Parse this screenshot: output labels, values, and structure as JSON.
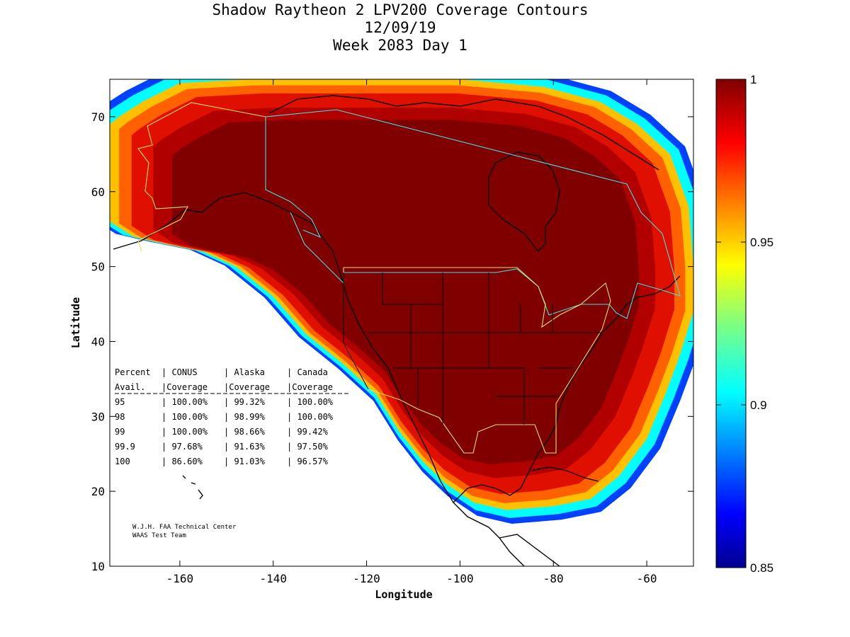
{
  "title": {
    "line1": "Shadow Raytheon 2 LPV200 Coverage Contours",
    "line2": "12/09/19",
    "line3": "Week 2083 Day 1"
  },
  "chart_data": {
    "type": "heatmap",
    "title": "Shadow Raytheon 2 LPV200 Coverage Contours",
    "xlabel": "Longitude",
    "ylabel": "Latitude",
    "xlim": [
      -175,
      -50
    ],
    "ylim": [
      10,
      75
    ],
    "x_ticks": [
      -160,
      -140,
      -120,
      -100,
      -80,
      -60
    ],
    "y_ticks": [
      10,
      20,
      30,
      40,
      50,
      60,
      70
    ],
    "colorbar": {
      "range": [
        0.85,
        1
      ],
      "ticks": [
        0.85,
        0.9,
        0.95,
        1
      ],
      "tick_labels": [
        "0.85",
        "0.9",
        "0.95",
        "1"
      ],
      "colormap": "jet"
    },
    "coverage_table": {
      "header1": [
        "Percent",
        "CONUS",
        "Alaska",
        "Canada"
      ],
      "header2": [
        "Avail.",
        "Coverage",
        "Coverage",
        "Coverage"
      ],
      "rows": [
        [
          "95",
          "100.00%",
          "99.32%",
          "100.00%"
        ],
        [
          "98",
          "100.00%",
          "98.99%",
          "100.00%"
        ],
        [
          "99",
          "100.00%",
          "98.66%",
          "99.42%"
        ],
        [
          "99.9",
          "97.68%",
          "91.63%",
          "97.50%"
        ],
        [
          "100",
          "86.60%",
          "91.03%",
          "96.57%"
        ]
      ]
    },
    "coverage_region": [
      [
        -173,
        70
      ],
      [
        -168,
        72
      ],
      [
        -160,
        74.5
      ],
      [
        -145,
        75
      ],
      [
        -120,
        75
      ],
      [
        -100,
        75
      ],
      [
        -82,
        74
      ],
      [
        -70,
        72
      ],
      [
        -62,
        69
      ],
      [
        -55,
        65
      ],
      [
        -51,
        58
      ],
      [
        -50,
        50
      ],
      [
        -50,
        44
      ],
      [
        -53,
        38
      ],
      [
        -56,
        33
      ],
      [
        -60,
        27
      ],
      [
        -66,
        22
      ],
      [
        -72,
        19
      ],
      [
        -80,
        18
      ],
      [
        -90,
        17.5
      ],
      [
        -97,
        18.5
      ],
      [
        -103,
        21
      ],
      [
        -108,
        24
      ],
      [
        -113,
        28
      ],
      [
        -118,
        33
      ],
      [
        -125,
        37
      ],
      [
        -133,
        41
      ],
      [
        -140,
        46
      ],
      [
        -148,
        50
      ],
      [
        -155,
        52
      ],
      [
        -163,
        53
      ],
      [
        -170,
        54
      ],
      [
        -175,
        56
      ],
      [
        -175,
        69
      ]
    ],
    "colors": {
      "core": "#800000",
      "level_2": "#b00000",
      "level_3": "#e01000",
      "level_4": "#ff6000",
      "level_5": "#ffc000",
      "level_6": "#00ffff",
      "level_7": "#0040ff"
    }
  },
  "credit": {
    "line1": "W.J.H. FAA Technical Center",
    "line2": "WAAS Test Team"
  }
}
